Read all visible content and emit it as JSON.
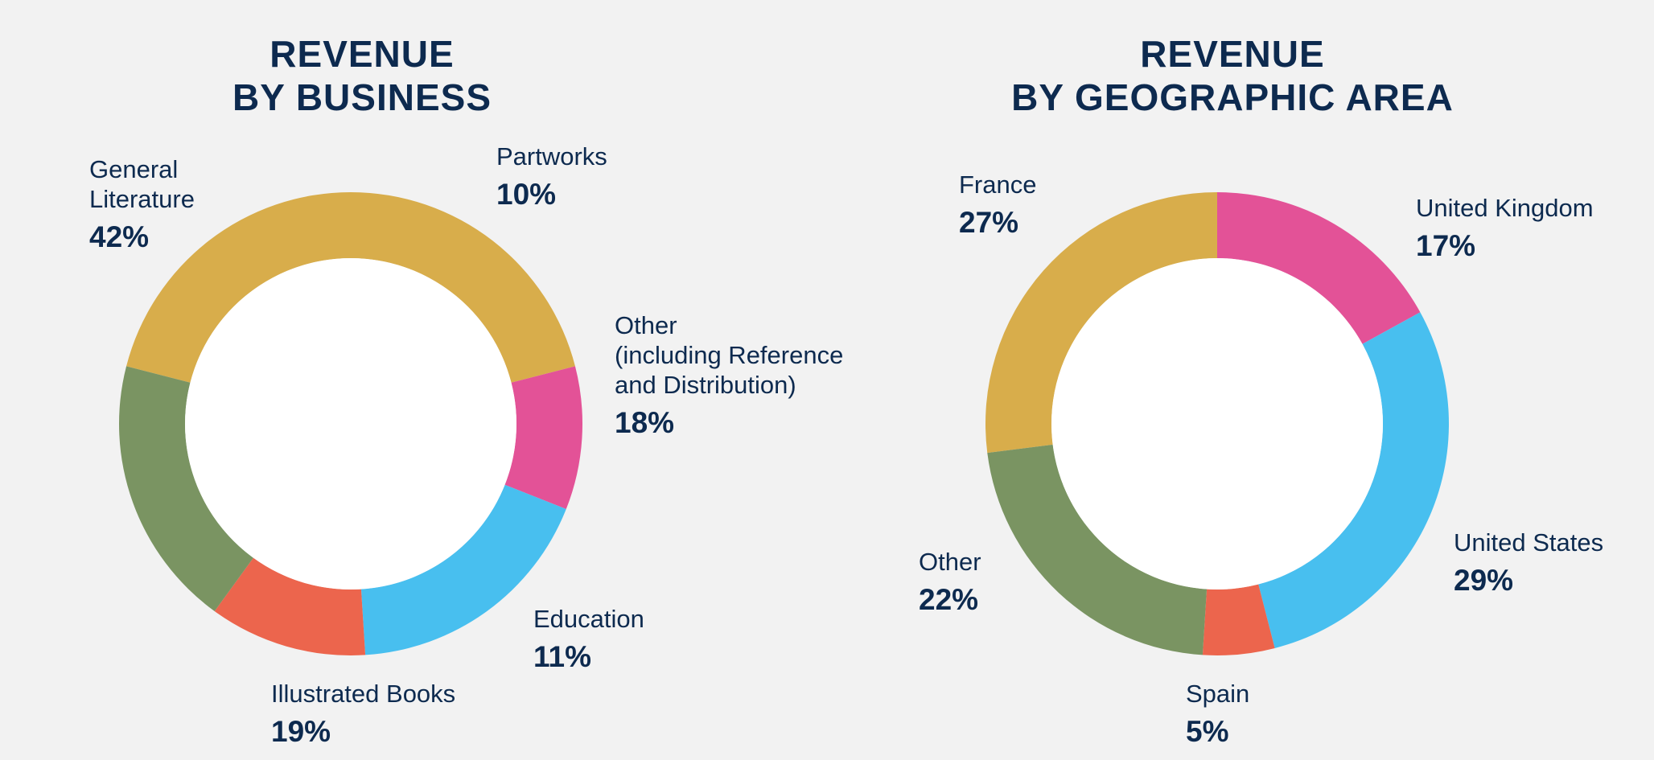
{
  "colors": {
    "background": "#f2f2f2",
    "text": "#0d2a4f",
    "gold": "#d8ad4b",
    "pink": "#e35297",
    "sky": "#48bfef",
    "coral": "#ec654d",
    "green": "#7a9462",
    "hole": "#ffffff"
  },
  "chart_data": [
    {
      "type": "pie",
      "variant": "donut",
      "title": "REVENUE\nBY BUSINESS",
      "title_lines": [
        "REVENUE",
        "BY BUSINESS"
      ],
      "slices": [
        {
          "label": "General\nLiterature",
          "value": 42,
          "display": "42%",
          "color": "#d8ad4b"
        },
        {
          "label": "Partworks",
          "value": 10,
          "display": "10%",
          "color": "#e35297"
        },
        {
          "label": "Other\n(including Reference\nand Distribution)",
          "value": 18,
          "display": "18%",
          "color": "#48bfef"
        },
        {
          "label": "Education",
          "value": 11,
          "display": "11%",
          "color": "#ec654d"
        },
        {
          "label": "Illustrated Books",
          "value": 19,
          "display": "19%",
          "color": "#7a9462"
        }
      ]
    },
    {
      "type": "pie",
      "variant": "donut",
      "title": "REVENUE\nBY GEOGRAPHIC AREA",
      "title_lines": [
        "REVENUE",
        "BY GEOGRAPHIC AREA"
      ],
      "slices": [
        {
          "label": "France",
          "value": 27,
          "display": "27%",
          "color": "#d8ad4b"
        },
        {
          "label": "United Kingdom",
          "value": 17,
          "display": "17%",
          "color": "#e35297"
        },
        {
          "label": "United States",
          "value": 29,
          "display": "29%",
          "color": "#48bfef"
        },
        {
          "label": "Spain",
          "value": 5,
          "display": "5%",
          "color": "#ec654d"
        },
        {
          "label": "Other",
          "value": 22,
          "display": "22%",
          "color": "#7a9462"
        }
      ]
    }
  ]
}
